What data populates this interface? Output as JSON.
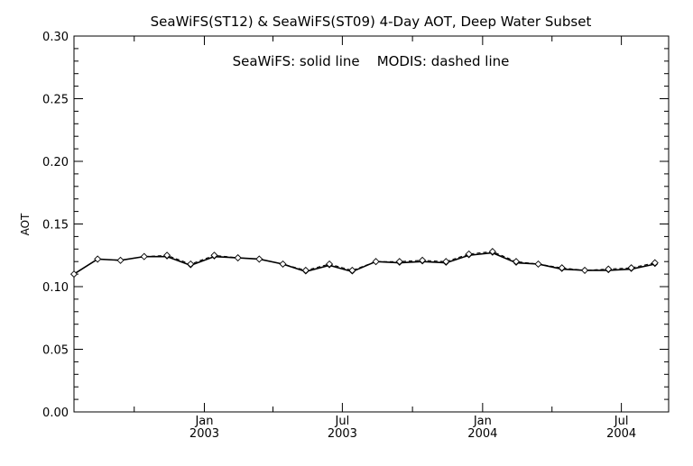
{
  "chart_data": {
    "type": "line",
    "title": "SeaWiFS(ST12) & SeaWiFS(ST09) 4-Day AOT, Deep Water Subset",
    "annotation": "SeaWiFS: solid line    MODIS: dashed line",
    "xlabel": "",
    "ylabel": "AOT",
    "xlim": [
      "2002-07-14",
      "2004-09-01"
    ],
    "ylim": [
      0.0,
      0.3
    ],
    "y_ticks": [
      "0.00",
      "0.05",
      "0.10",
      "0.15",
      "0.20",
      "0.25",
      "0.30"
    ],
    "x_ticks": [
      {
        "top": "Jan",
        "bottom": "2003",
        "date": "2003-01-01"
      },
      {
        "top": "Jul",
        "bottom": "2003",
        "date": "2003-07-01"
      },
      {
        "top": "Jan",
        "bottom": "2004",
        "date": "2004-01-01"
      },
      {
        "top": "Jul",
        "bottom": "2004",
        "date": "2004-07-01"
      }
    ],
    "grid": false,
    "series": [
      {
        "name": "SeaWiFS",
        "style": "solid",
        "marker": "filled-diamond",
        "points": [
          {
            "x": "2002-07-14",
            "y": 0.11
          },
          {
            "x": "2002-08-14",
            "y": 0.122
          },
          {
            "x": "2002-09-13",
            "y": 0.121
          },
          {
            "x": "2002-10-14",
            "y": 0.124
          },
          {
            "x": "2002-11-13",
            "y": 0.124
          },
          {
            "x": "2002-12-14",
            "y": 0.117
          },
          {
            "x": "2003-01-14",
            "y": 0.124
          },
          {
            "x": "2003-02-14",
            "y": 0.123
          },
          {
            "x": "2003-03-14",
            "y": 0.122
          },
          {
            "x": "2003-04-14",
            "y": 0.118
          },
          {
            "x": "2003-05-14",
            "y": 0.112
          },
          {
            "x": "2003-06-14",
            "y": 0.117
          },
          {
            "x": "2003-07-14",
            "y": 0.112
          },
          {
            "x": "2003-08-14",
            "y": 0.12
          },
          {
            "x": "2003-09-14",
            "y": 0.119
          },
          {
            "x": "2003-10-14",
            "y": 0.12
          },
          {
            "x": "2003-11-14",
            "y": 0.119
          },
          {
            "x": "2003-12-14",
            "y": 0.125
          },
          {
            "x": "2004-01-14",
            "y": 0.127
          },
          {
            "x": "2004-02-14",
            "y": 0.119
          },
          {
            "x": "2004-03-14",
            "y": 0.118
          },
          {
            "x": "2004-04-14",
            "y": 0.114
          },
          {
            "x": "2004-05-14",
            "y": 0.113
          },
          {
            "x": "2004-06-14",
            "y": 0.113
          },
          {
            "x": "2004-07-14",
            "y": 0.114
          },
          {
            "x": "2004-08-14",
            "y": 0.118
          }
        ]
      },
      {
        "name": "MODIS",
        "style": "dashed",
        "marker": "open-diamond",
        "points": [
          {
            "x": "2002-07-14",
            "y": 0.11
          },
          {
            "x": "2002-08-14",
            "y": 0.122
          },
          {
            "x": "2002-09-13",
            "y": 0.121
          },
          {
            "x": "2002-10-14",
            "y": 0.124
          },
          {
            "x": "2002-11-13",
            "y": 0.125
          },
          {
            "x": "2002-12-14",
            "y": 0.118
          },
          {
            "x": "2003-01-14",
            "y": 0.125
          },
          {
            "x": "2003-02-14",
            "y": 0.123
          },
          {
            "x": "2003-03-14",
            "y": 0.122
          },
          {
            "x": "2003-04-14",
            "y": 0.118
          },
          {
            "x": "2003-05-14",
            "y": 0.113
          },
          {
            "x": "2003-06-14",
            "y": 0.118
          },
          {
            "x": "2003-07-14",
            "y": 0.113
          },
          {
            "x": "2003-08-14",
            "y": 0.12
          },
          {
            "x": "2003-09-14",
            "y": 0.12
          },
          {
            "x": "2003-10-14",
            "y": 0.121
          },
          {
            "x": "2003-11-14",
            "y": 0.12
          },
          {
            "x": "2003-12-14",
            "y": 0.126
          },
          {
            "x": "2004-01-14",
            "y": 0.128
          },
          {
            "x": "2004-02-14",
            "y": 0.12
          },
          {
            "x": "2004-03-14",
            "y": 0.118
          },
          {
            "x": "2004-04-14",
            "y": 0.115
          },
          {
            "x": "2004-05-14",
            "y": 0.113
          },
          {
            "x": "2004-06-14",
            "y": 0.114
          },
          {
            "x": "2004-07-14",
            "y": 0.115
          },
          {
            "x": "2004-08-14",
            "y": 0.119
          }
        ]
      }
    ]
  }
}
